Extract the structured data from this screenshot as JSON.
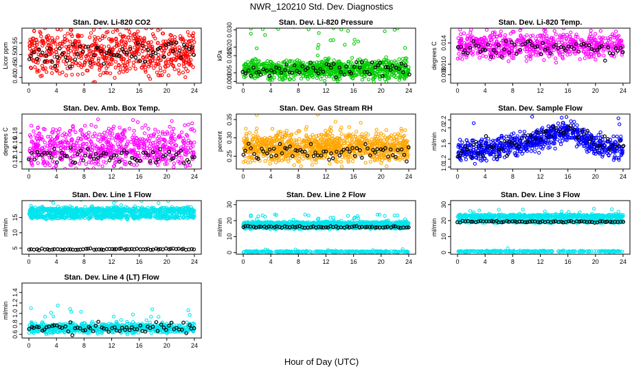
{
  "title": "NWR_120210  Std. Dev. Diagnostics",
  "xlabel": "Hour of Day (UTC)",
  "colors": {
    "red": "#ff0000",
    "green": "#00cc00",
    "magenta": "#ff00ff",
    "orange": "#ffa500",
    "blue": "#0000ff",
    "cyan": "#00e5ee",
    "black": "#000000"
  },
  "chart_data": [
    {
      "type": "scatter",
      "title": "Stan. Dev. Li-820 CO2",
      "ylabel": "Licor ppm",
      "color": "red",
      "x_ticks": [
        0,
        4,
        8,
        12,
        16,
        20,
        24
      ],
      "y_ticks": [
        "0.40",
        "0.45",
        "0.50",
        "0.55"
      ],
      "y_tick_values": [
        0.4,
        0.45,
        0.5,
        0.55
      ],
      "xlim": [
        -1,
        25
      ],
      "ylim": [
        0.375,
        0.615
      ],
      "bands": [
        {
          "center": 0.51,
          "spread": 0.05,
          "n": 700
        }
      ],
      "black_mean": [
        [
          0,
          0.5
        ],
        [
          24,
          0.52
        ]
      ],
      "black_spread": 0.025
    },
    {
      "type": "scatter",
      "title": "Stan. Dev. Li-820 Pressure",
      "ylabel": "kPa",
      "color": "green",
      "x_ticks": [
        0,
        4,
        8,
        12,
        16,
        20,
        24
      ],
      "y_ticks": [
        "0.000",
        "0.005",
        "0.015",
        "0.020",
        "0.030"
      ],
      "y_tick_values": [
        0.0,
        0.005,
        0.015,
        0.02,
        0.03
      ],
      "xlim": [
        -1,
        25
      ],
      "ylim": [
        -0.001,
        0.031
      ],
      "bands": [
        {
          "center": 0.007,
          "spread": 0.0028,
          "n": 900
        }
      ],
      "black_mean": [
        [
          0,
          0.006
        ],
        [
          16,
          0.008
        ],
        [
          24,
          0.007
        ]
      ],
      "black_spread": 0.002
    },
    {
      "type": "scatter",
      "title": "Stan. Dev. Li-820 Temp.",
      "ylabel": "degrees C",
      "color": "magenta",
      "x_ticks": [
        0,
        4,
        8,
        12,
        16,
        20,
        24
      ],
      "y_ticks": [
        "0.008",
        "0.010",
        "0.014"
      ],
      "y_tick_values": [
        0.008,
        0.01,
        0.014
      ],
      "xlim": [
        -1,
        25
      ],
      "ylim": [
        0.0064,
        0.0168
      ],
      "bands": [
        {
          "center": 0.0135,
          "spread": 0.0012,
          "n": 650
        }
      ],
      "black_mean": [
        [
          0,
          0.0133
        ],
        [
          24,
          0.0128
        ]
      ],
      "black_spread": 0.0008
    },
    {
      "type": "scatter",
      "title": "Stan. Dev. Amb. Box Temp.",
      "ylabel": "degrees C",
      "color": "magenta",
      "x_ticks": [
        0,
        4,
        8,
        12,
        16,
        20,
        24
      ],
      "y_ticks": [
        "0.12",
        "0.14",
        "0.16",
        "0.18"
      ],
      "y_tick_values": [
        0.12,
        0.14,
        0.16,
        0.18
      ],
      "xlim": [
        -1,
        25
      ],
      "ylim": [
        0.105,
        0.22
      ],
      "bands": [
        {
          "center": 0.15,
          "spread": 0.022,
          "n": 700
        }
      ],
      "black_mean": [
        [
          0,
          0.135
        ],
        [
          24,
          0.13
        ]
      ],
      "black_spread": 0.008
    },
    {
      "type": "scatter",
      "title": "Stan. Dev. Gas Stream RH",
      "ylabel": "percent",
      "color": "orange",
      "x_ticks": [
        0,
        4,
        8,
        12,
        16,
        20,
        24
      ],
      "y_ticks": [
        "0.25",
        "0.30",
        "0.35"
      ],
      "y_tick_values": [
        0.25,
        0.3,
        0.35
      ],
      "xlim": [
        -1,
        25
      ],
      "ylim": [
        0.215,
        0.365
      ],
      "bands": [
        {
          "center": 0.275,
          "spread": 0.02,
          "n": 1000
        }
      ],
      "black_mean": [
        [
          0,
          0.26
        ],
        [
          24,
          0.265
        ]
      ],
      "black_spread": 0.012
    },
    {
      "type": "scatter",
      "title": "Stan. Dev. Sample Flow",
      "ylabel": "ml/min",
      "color": "blue",
      "x_ticks": [
        0,
        4,
        8,
        12,
        16,
        20,
        24
      ],
      "y_ticks": [
        "1.0",
        "1.2",
        "1.6",
        "2.0",
        "2.2"
      ],
      "y_tick_values": [
        1.0,
        1.2,
        1.6,
        2.0,
        2.2
      ],
      "xlim": [
        -1,
        25
      ],
      "ylim": [
        0.95,
        2.35
      ],
      "bands": [
        {
          "center": 1.45,
          "spread": 0.14,
          "n": 750
        }
      ],
      "black_mean": [
        [
          0,
          1.45
        ],
        [
          6,
          1.55
        ],
        [
          12,
          1.75
        ],
        [
          16,
          2.0
        ],
        [
          20,
          1.6
        ],
        [
          24,
          1.5
        ]
      ],
      "black_spread": 0.12,
      "band_curve": [
        [
          0,
          1.4
        ],
        [
          6,
          1.5
        ],
        [
          12,
          1.7
        ],
        [
          16,
          1.95
        ],
        [
          20,
          1.55
        ],
        [
          24,
          1.45
        ]
      ]
    },
    {
      "type": "scatter",
      "title": "Stan. Dev. Line 1 Flow",
      "ylabel": "ml/min",
      "color": "cyan",
      "x_ticks": [
        0,
        4,
        8,
        12,
        16,
        20,
        24
      ],
      "y_ticks": [
        "5",
        "10",
        "15"
      ],
      "y_tick_values": [
        5,
        10,
        15
      ],
      "xlim": [
        -1,
        25
      ],
      "ylim": [
        3,
        20.5
      ],
      "bands": [
        {
          "center": 17.3,
          "spread": 0.5,
          "n": 600
        },
        {
          "center": 15.4,
          "spread": 0.4,
          "n": 450
        }
      ],
      "black_mean": [
        [
          0,
          4.6
        ],
        [
          24,
          4.7
        ]
      ],
      "black_spread": 0.15
    },
    {
      "type": "scatter",
      "title": "Stan. Dev. Line 2 Flow",
      "ylabel": "ml/min",
      "color": "cyan",
      "x_ticks": [
        0,
        4,
        8,
        12,
        16,
        20,
        24
      ],
      "y_ticks": [
        "0",
        "10",
        "20",
        "30"
      ],
      "y_tick_values": [
        0,
        10,
        20,
        30
      ],
      "xlim": [
        -1,
        25
      ],
      "ylim": [
        -1,
        32.5
      ],
      "bands": [
        {
          "center": 18.2,
          "spread": 0.6,
          "n": 600
        },
        {
          "center": 15.8,
          "spread": 0.5,
          "n": 450
        },
        {
          "center": 0.6,
          "spread": 0.2,
          "n": 250
        }
      ],
      "black_mean": [
        [
          0,
          16
        ],
        [
          24,
          16
        ]
      ],
      "black_spread": 0.3
    },
    {
      "type": "scatter",
      "title": "Stan. Dev. Line 3 Flow",
      "ylabel": "ml/min",
      "color": "cyan",
      "x_ticks": [
        0,
        4,
        8,
        12,
        16,
        20,
        24
      ],
      "y_ticks": [
        "0",
        "10",
        "20",
        "30"
      ],
      "y_tick_values": [
        0,
        10,
        20,
        30
      ],
      "xlim": [
        -1,
        25
      ],
      "ylim": [
        -1,
        32.5
      ],
      "bands": [
        {
          "center": 22.8,
          "spread": 0.5,
          "n": 600
        },
        {
          "center": 19.6,
          "spread": 0.5,
          "n": 450
        },
        {
          "center": 0.8,
          "spread": 0.2,
          "n": 250
        }
      ],
      "black_mean": [
        [
          0,
          19.5
        ],
        [
          24,
          19.2
        ]
      ],
      "black_spread": 0.3
    },
    {
      "type": "scatter",
      "title": "Stan. Dev. Line 4 (LT) Flow",
      "ylabel": "ml/min",
      "color": "cyan",
      "x_ticks": [
        0,
        4,
        8,
        12,
        16,
        20,
        24
      ],
      "y_ticks": [
        "0.6",
        "0.8",
        "1.0",
        "1.2",
        "1.4"
      ],
      "y_tick_values": [
        0.6,
        0.8,
        1.0,
        1.2,
        1.4
      ],
      "xlim": [
        -1,
        25
      ],
      "ylim": [
        0.53,
        1.58
      ],
      "bands": [
        {
          "center": 0.72,
          "spread": 0.045,
          "n": 800
        }
      ],
      "black_mean": [
        [
          0,
          0.72
        ],
        [
          24,
          0.72
        ]
      ],
      "black_spread": 0.05
    }
  ]
}
